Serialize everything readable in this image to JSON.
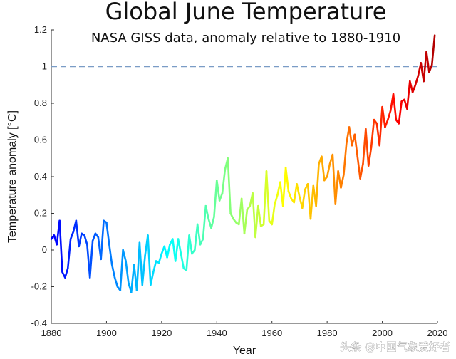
{
  "chart_data": {
    "type": "line",
    "title": "Global June Temperature",
    "subtitle": "NASA GISS data, anomaly relative to 1880-1910",
    "xlabel": "Year",
    "ylabel": "Temperature anomaly [°C]",
    "xlim": [
      1880,
      2020
    ],
    "ylim": [
      -0.4,
      1.2
    ],
    "xticks": [
      "1880",
      "1900",
      "1920",
      "1940",
      "1960",
      "1980",
      "2000",
      "2020"
    ],
    "yticks": [
      "-0.4",
      "-0.2",
      "0",
      "0.2",
      "0.4",
      "0.6",
      "0.8",
      "1",
      "1.2"
    ],
    "reference_line": {
      "y": 1.0,
      "style": "dashed",
      "color": "#7a9cc6"
    },
    "colormap": "jet (blue to red by year)",
    "grid": false,
    "series": [
      {
        "x": [
          1880,
          1881,
          1882,
          1883,
          1884,
          1885,
          1886,
          1887,
          1888,
          1889,
          1890,
          1891,
          1892,
          1893,
          1894,
          1895,
          1896,
          1897,
          1898,
          1899,
          1900,
          1901,
          1902,
          1903,
          1904,
          1905,
          1906,
          1907,
          1908,
          1909,
          1910,
          1911,
          1912,
          1913,
          1914,
          1915,
          1916,
          1917,
          1918,
          1919,
          1920,
          1921,
          1922,
          1923,
          1924,
          1925,
          1926,
          1927,
          1928,
          1929,
          1930,
          1931,
          1932,
          1933,
          1934,
          1935,
          1936,
          1937,
          1938,
          1939,
          1940,
          1941,
          1942,
          1943,
          1944,
          1945,
          1946,
          1947,
          1948,
          1949,
          1950,
          1951,
          1952,
          1953,
          1954,
          1955,
          1956,
          1957,
          1958,
          1959,
          1960,
          1961,
          1962,
          1963,
          1964,
          1965,
          1966,
          1967,
          1968,
          1969,
          1970,
          1971,
          1972,
          1973,
          1974,
          1975,
          1976,
          1977,
          1978,
          1979,
          1980,
          1981,
          1982,
          1983,
          1984,
          1985,
          1986,
          1987,
          1988,
          1989,
          1990,
          1991,
          1992,
          1993,
          1994,
          1995,
          1996,
          1997,
          1998,
          1999,
          2000,
          2001,
          2002,
          2003,
          2004,
          2005,
          2006,
          2007,
          2008,
          2009,
          2010,
          2011,
          2012,
          2013,
          2014,
          2015,
          2016,
          2017,
          2018,
          2019
        ],
        "values": [
          0.06,
          0.08,
          0.03,
          0.16,
          -0.12,
          -0.15,
          -0.1,
          0.06,
          0.1,
          0.16,
          0.02,
          0.09,
          0.08,
          0.03,
          -0.15,
          0.05,
          0.09,
          0.07,
          -0.05,
          0.16,
          0.15,
          0.03,
          -0.08,
          -0.15,
          -0.2,
          -0.22,
          0.0,
          -0.06,
          -0.18,
          -0.23,
          -0.08,
          -0.22,
          0.04,
          -0.19,
          -0.03,
          0.08,
          -0.19,
          -0.12,
          -0.06,
          -0.07,
          -0.02,
          0.02,
          -0.04,
          0.03,
          0.06,
          -0.06,
          0.06,
          -0.02,
          -0.1,
          -0.11,
          0.08,
          -0.02,
          0.0,
          0.14,
          0.03,
          0.06,
          0.24,
          0.17,
          0.12,
          0.18,
          0.38,
          0.27,
          0.31,
          0.44,
          0.5,
          0.2,
          0.17,
          0.15,
          0.14,
          0.28,
          0.09,
          0.22,
          0.24,
          0.31,
          0.07,
          0.24,
          0.13,
          0.14,
          0.43,
          0.16,
          0.14,
          0.25,
          0.3,
          0.37,
          0.24,
          0.45,
          0.32,
          0.28,
          0.26,
          0.36,
          0.29,
          0.23,
          0.33,
          0.36,
          0.17,
          0.35,
          0.24,
          0.47,
          0.51,
          0.38,
          0.4,
          0.47,
          0.52,
          0.25,
          0.43,
          0.34,
          0.41,
          0.58,
          0.67,
          0.57,
          0.63,
          0.51,
          0.39,
          0.47,
          0.66,
          0.46,
          0.56,
          0.71,
          0.69,
          0.57,
          0.78,
          0.67,
          0.71,
          0.76,
          0.85,
          0.71,
          0.69,
          0.81,
          0.82,
          0.77,
          0.92,
          0.86,
          0.9,
          0.95,
          1.02,
          0.92,
          1.08,
          0.97,
          1.01,
          1.17
        ]
      }
    ]
  },
  "watermark": "头条 @中国气象爱好者"
}
